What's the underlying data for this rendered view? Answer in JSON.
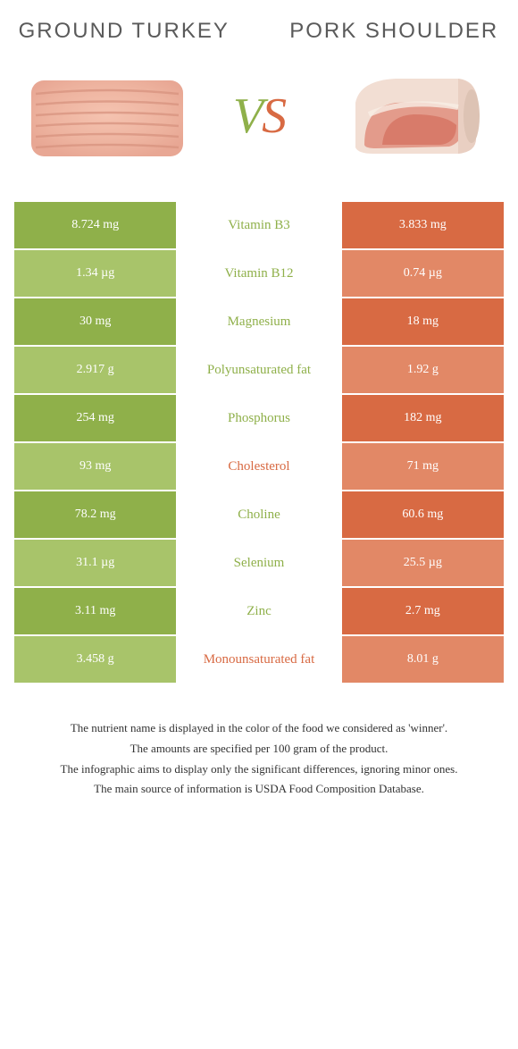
{
  "left_food": {
    "title": "Ground turkey"
  },
  "right_food": {
    "title": "Pork shoulder"
  },
  "vs_text": "vs",
  "colors": {
    "left": "#8fb04a",
    "right": "#d86a43",
    "left_light": "#a8c46a",
    "right_light": "#e28866",
    "mid_bg": "#ffffff",
    "row_border": "#ffffff"
  },
  "rows": [
    {
      "nutrient": "Vitamin B3",
      "left": "8.724 mg",
      "right": "3.833 mg",
      "winner": "left"
    },
    {
      "nutrient": "Vitamin B12",
      "left": "1.34 µg",
      "right": "0.74 µg",
      "winner": "left"
    },
    {
      "nutrient": "Magnesium",
      "left": "30 mg",
      "right": "18 mg",
      "winner": "left"
    },
    {
      "nutrient": "Polyunsaturated fat",
      "left": "2.917 g",
      "right": "1.92 g",
      "winner": "left"
    },
    {
      "nutrient": "Phosphorus",
      "left": "254 mg",
      "right": "182 mg",
      "winner": "left"
    },
    {
      "nutrient": "Cholesterol",
      "left": "93 mg",
      "right": "71 mg",
      "winner": "right"
    },
    {
      "nutrient": "Choline",
      "left": "78.2 mg",
      "right": "60.6 mg",
      "winner": "left"
    },
    {
      "nutrient": "Selenium",
      "left": "31.1 µg",
      "right": "25.5 µg",
      "winner": "left"
    },
    {
      "nutrient": "Zinc",
      "left": "3.11 mg",
      "right": "2.7 mg",
      "winner": "left"
    },
    {
      "nutrient": "Monounsaturated fat",
      "left": "3.458 g",
      "right": "8.01 g",
      "winner": "right"
    }
  ],
  "footnotes": [
    "The nutrient name is displayed in the color of the food we considered as 'winner'.",
    "The amounts are specified per 100 gram of the product.",
    "The infographic aims to display only the significant differences, ignoring minor ones.",
    "The main source of information is USDA Food Composition Database."
  ]
}
